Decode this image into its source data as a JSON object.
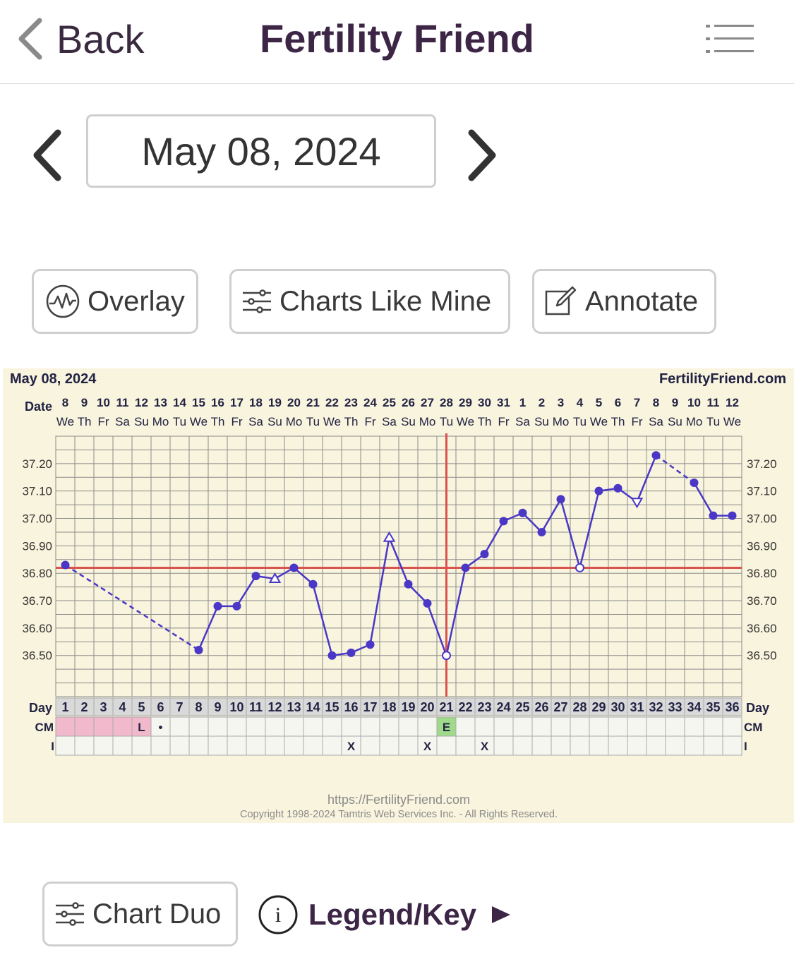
{
  "header": {
    "back_label": "Back",
    "title": "Fertility Friend",
    "menu_icon": "list-menu-icon"
  },
  "date_nav": {
    "current_date": "May 08, 2024",
    "prev_icon": "chevron-left-icon",
    "next_icon": "chevron-right-icon"
  },
  "actions": {
    "overlay_label": "Overlay",
    "charts_like_mine_label": "Charts Like Mine",
    "annotate_label": "Annotate"
  },
  "chart_data": {
    "type": "line",
    "title": "May 08, 2024",
    "site_label": "FertilityFriend.com",
    "date_row_label": "Date",
    "day_row_label": "Day",
    "cm_row_label": "CM",
    "i_row_label": "I",
    "dates": [
      "8",
      "9",
      "10",
      "11",
      "12",
      "13",
      "14",
      "15",
      "16",
      "17",
      "18",
      "19",
      "20",
      "21",
      "22",
      "23",
      "24",
      "25",
      "26",
      "27",
      "28",
      "29",
      "30",
      "31",
      "1",
      "2",
      "3",
      "4",
      "5",
      "6",
      "7",
      "8",
      "9",
      "10",
      "11",
      "12"
    ],
    "weekdays": [
      "We",
      "Th",
      "Fr",
      "Sa",
      "Su",
      "Mo",
      "Tu",
      "We",
      "Th",
      "Fr",
      "Sa",
      "Su",
      "Mo",
      "Tu",
      "We",
      "Th",
      "Fr",
      "Sa",
      "Su",
      "Mo",
      "Tu",
      "We",
      "Th",
      "Fr",
      "Sa",
      "Su",
      "Mo",
      "Tu",
      "We",
      "Th",
      "Fr",
      "Sa",
      "Su",
      "Mo",
      "Tu",
      "We"
    ],
    "days": [
      "1",
      "2",
      "3",
      "4",
      "5",
      "6",
      "7",
      "8",
      "9",
      "10",
      "11",
      "12",
      "13",
      "14",
      "15",
      "16",
      "17",
      "18",
      "19",
      "20",
      "21",
      "22",
      "23",
      "24",
      "25",
      "26",
      "27",
      "28",
      "29",
      "30",
      "31",
      "32",
      "33",
      "34",
      "35",
      "36"
    ],
    "ylim": [
      36.35,
      37.3
    ],
    "y_ticks": [
      "37.20",
      "37.10",
      "37.00",
      "36.90",
      "36.80",
      "36.70",
      "36.60",
      "36.50"
    ],
    "y_tick_values": [
      37.2,
      37.1,
      37.0,
      36.9,
      36.8,
      36.7,
      36.6,
      36.5
    ],
    "series": [
      {
        "points": [
          {
            "day": 1,
            "temp": 36.83,
            "marker": "dot"
          },
          {
            "day": 8,
            "temp": 36.52,
            "marker": "dot"
          },
          {
            "day": 9,
            "temp": 36.68,
            "marker": "dot"
          },
          {
            "day": 10,
            "temp": 36.68,
            "marker": "dot"
          },
          {
            "day": 11,
            "temp": 36.79,
            "marker": "dot"
          },
          {
            "day": 12,
            "temp": 36.78,
            "marker": "open-triangle"
          },
          {
            "day": 13,
            "temp": 36.82,
            "marker": "dot"
          },
          {
            "day": 14,
            "temp": 36.76,
            "marker": "dot"
          },
          {
            "day": 15,
            "temp": 36.5,
            "marker": "dot"
          },
          {
            "day": 16,
            "temp": 36.51,
            "marker": "dot"
          },
          {
            "day": 17,
            "temp": 36.54,
            "marker": "dot"
          },
          {
            "day": 18,
            "temp": 36.93,
            "marker": "open-triangle"
          },
          {
            "day": 19,
            "temp": 36.76,
            "marker": "dot"
          },
          {
            "day": 20,
            "temp": 36.69,
            "marker": "dot"
          },
          {
            "day": 21,
            "temp": 36.5,
            "marker": "open-circle"
          },
          {
            "day": 22,
            "temp": 36.82,
            "marker": "dot"
          },
          {
            "day": 23,
            "temp": 36.87,
            "marker": "dot"
          },
          {
            "day": 24,
            "temp": 36.99,
            "marker": "dot"
          },
          {
            "day": 25,
            "temp": 37.02,
            "marker": "dot"
          },
          {
            "day": 26,
            "temp": 36.95,
            "marker": "dot"
          },
          {
            "day": 27,
            "temp": 37.07,
            "marker": "dot"
          },
          {
            "day": 28,
            "temp": 36.82,
            "marker": "open-circle"
          },
          {
            "day": 29,
            "temp": 37.1,
            "marker": "dot"
          },
          {
            "day": 30,
            "temp": 37.11,
            "marker": "dot"
          },
          {
            "day": 31,
            "temp": 37.06,
            "marker": "open-triangle-down"
          },
          {
            "day": 32,
            "temp": 37.23,
            "marker": "dot"
          },
          {
            "day": 34,
            "temp": 37.13,
            "marker": "dot"
          },
          {
            "day": 35,
            "temp": 37.01,
            "marker": "dot"
          },
          {
            "day": 36,
            "temp": 37.01,
            "marker": "dot"
          }
        ],
        "dashed_segments": [
          [
            1,
            8
          ],
          [
            32,
            34
          ]
        ]
      }
    ],
    "coverline": 36.82,
    "ovulation_day": 21,
    "cm": [
      {
        "day": 1,
        "text": "",
        "color": "#f2b8cb"
      },
      {
        "day": 2,
        "text": "",
        "color": "#f2b8cb"
      },
      {
        "day": 3,
        "text": "",
        "color": "#f2b8cb"
      },
      {
        "day": 4,
        "text": "",
        "color": "#f2b8cb"
      },
      {
        "day": 5,
        "text": "L",
        "color": "#f2b8cb"
      },
      {
        "day": 6,
        "text": "•",
        "color": ""
      },
      {
        "day": 21,
        "text": "E",
        "color": "#9fd98a"
      }
    ],
    "intercourse": [
      {
        "day": 16,
        "text": "X"
      },
      {
        "day": 20,
        "text": "X"
      },
      {
        "day": 23,
        "text": "X"
      }
    ],
    "colors": {
      "line": "#4a37c6",
      "coverline": "#d9534f",
      "background": "#f8f4dd",
      "grid": "#888888"
    }
  },
  "footer": {
    "url": "https://FertilityFriend.com",
    "copyright": "Copyright 1998-2024 Tamtris Web Services Inc. - All Rights Reserved."
  },
  "bottom": {
    "chart_duo_label": "Chart Duo",
    "legend_label": "Legend/Key"
  }
}
